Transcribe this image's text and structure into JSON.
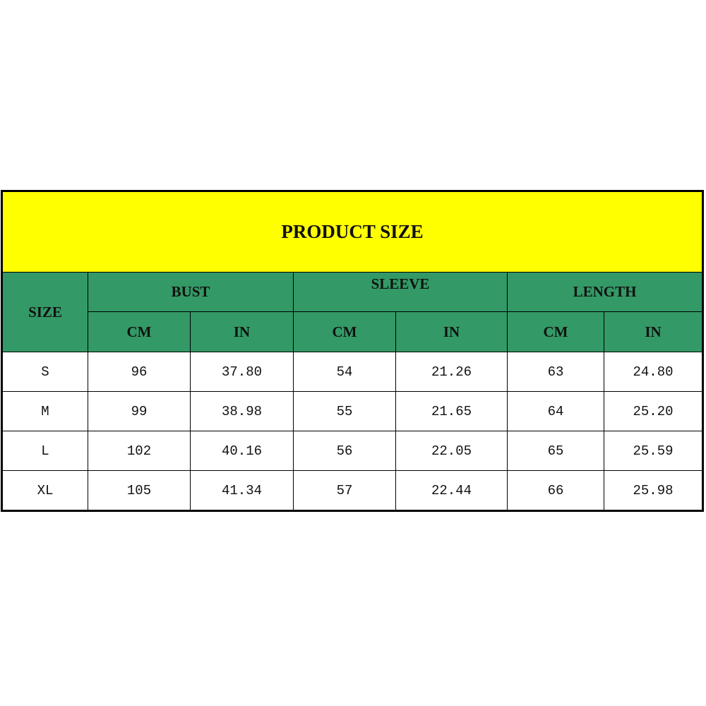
{
  "title": "PRODUCT SIZE",
  "colors": {
    "title_bg": "#ffff00",
    "header_bg": "#339966",
    "border": "#000000"
  },
  "header": {
    "size": "SIZE",
    "groups": [
      "BUST",
      "SLEEVE",
      "LENGTH"
    ],
    "units": [
      "CM",
      "IN",
      "CM",
      "IN",
      "CM",
      "IN"
    ]
  },
  "rows": [
    [
      "S",
      "96",
      "37.80",
      "54",
      "21.26",
      "63",
      "24.80"
    ],
    [
      "M",
      "99",
      "38.98",
      "55",
      "21.65",
      "64",
      "25.20"
    ],
    [
      "L",
      "102",
      "40.16",
      "56",
      "22.05",
      "65",
      "25.59"
    ],
    [
      "XL",
      "105",
      "41.34",
      "57",
      "22.44",
      "66",
      "25.98"
    ]
  ]
}
